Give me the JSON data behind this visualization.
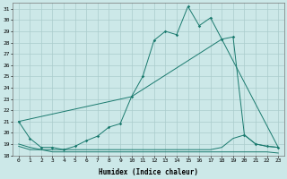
{
  "xlabel": "Humidex (Indice chaleur)",
  "background_color": "#cce8e8",
  "grid_color": "#aacccc",
  "line_color": "#1a7a6e",
  "xlim": [
    -0.5,
    23.5
  ],
  "ylim": [
    18.0,
    31.5
  ],
  "yticks": [
    18,
    19,
    20,
    21,
    22,
    23,
    24,
    25,
    26,
    27,
    28,
    29,
    30,
    31
  ],
  "xticks": [
    0,
    1,
    2,
    3,
    4,
    5,
    6,
    7,
    8,
    9,
    10,
    11,
    12,
    13,
    14,
    15,
    16,
    17,
    18,
    19,
    20,
    21,
    22,
    23
  ],
  "line1_x": [
    0,
    1,
    2,
    3,
    4,
    5,
    6,
    7,
    8,
    9,
    10,
    11,
    12,
    13,
    14,
    15,
    16,
    17,
    18,
    19,
    20,
    21,
    22,
    23
  ],
  "line1_y": [
    21.0,
    19.5,
    18.7,
    18.7,
    18.5,
    18.8,
    19.3,
    19.7,
    20.5,
    20.8,
    23.2,
    25.0,
    28.2,
    29.0,
    28.7,
    31.2,
    29.5,
    30.2,
    28.3,
    28.5,
    19.8,
    19.0,
    18.8,
    18.7
  ],
  "line2_x": [
    0,
    10,
    18,
    23
  ],
  "line2_y": [
    21.0,
    23.2,
    28.3,
    18.7
  ],
  "line3_x": [
    0,
    1,
    2,
    3,
    4,
    5,
    6,
    7,
    8,
    9,
    10,
    11,
    12,
    13,
    14,
    15,
    16,
    17,
    18,
    19,
    20,
    21,
    22,
    23
  ],
  "line3_y": [
    19.0,
    18.7,
    18.5,
    18.5,
    18.5,
    18.5,
    18.5,
    18.5,
    18.5,
    18.5,
    18.5,
    18.5,
    18.5,
    18.5,
    18.5,
    18.5,
    18.5,
    18.5,
    18.7,
    19.5,
    19.8,
    19.0,
    18.8,
    18.7
  ],
  "line4_x": [
    0,
    1,
    2,
    3,
    4,
    5,
    6,
    7,
    8,
    9,
    10,
    11,
    12,
    13,
    14,
    15,
    16,
    17,
    18,
    19,
    20,
    21,
    22,
    23
  ],
  "line4_y": [
    18.8,
    18.5,
    18.5,
    18.3,
    18.3,
    18.3,
    18.3,
    18.3,
    18.3,
    18.3,
    18.3,
    18.3,
    18.3,
    18.3,
    18.3,
    18.3,
    18.3,
    18.3,
    18.3,
    18.3,
    18.3,
    18.3,
    18.3,
    18.2
  ]
}
